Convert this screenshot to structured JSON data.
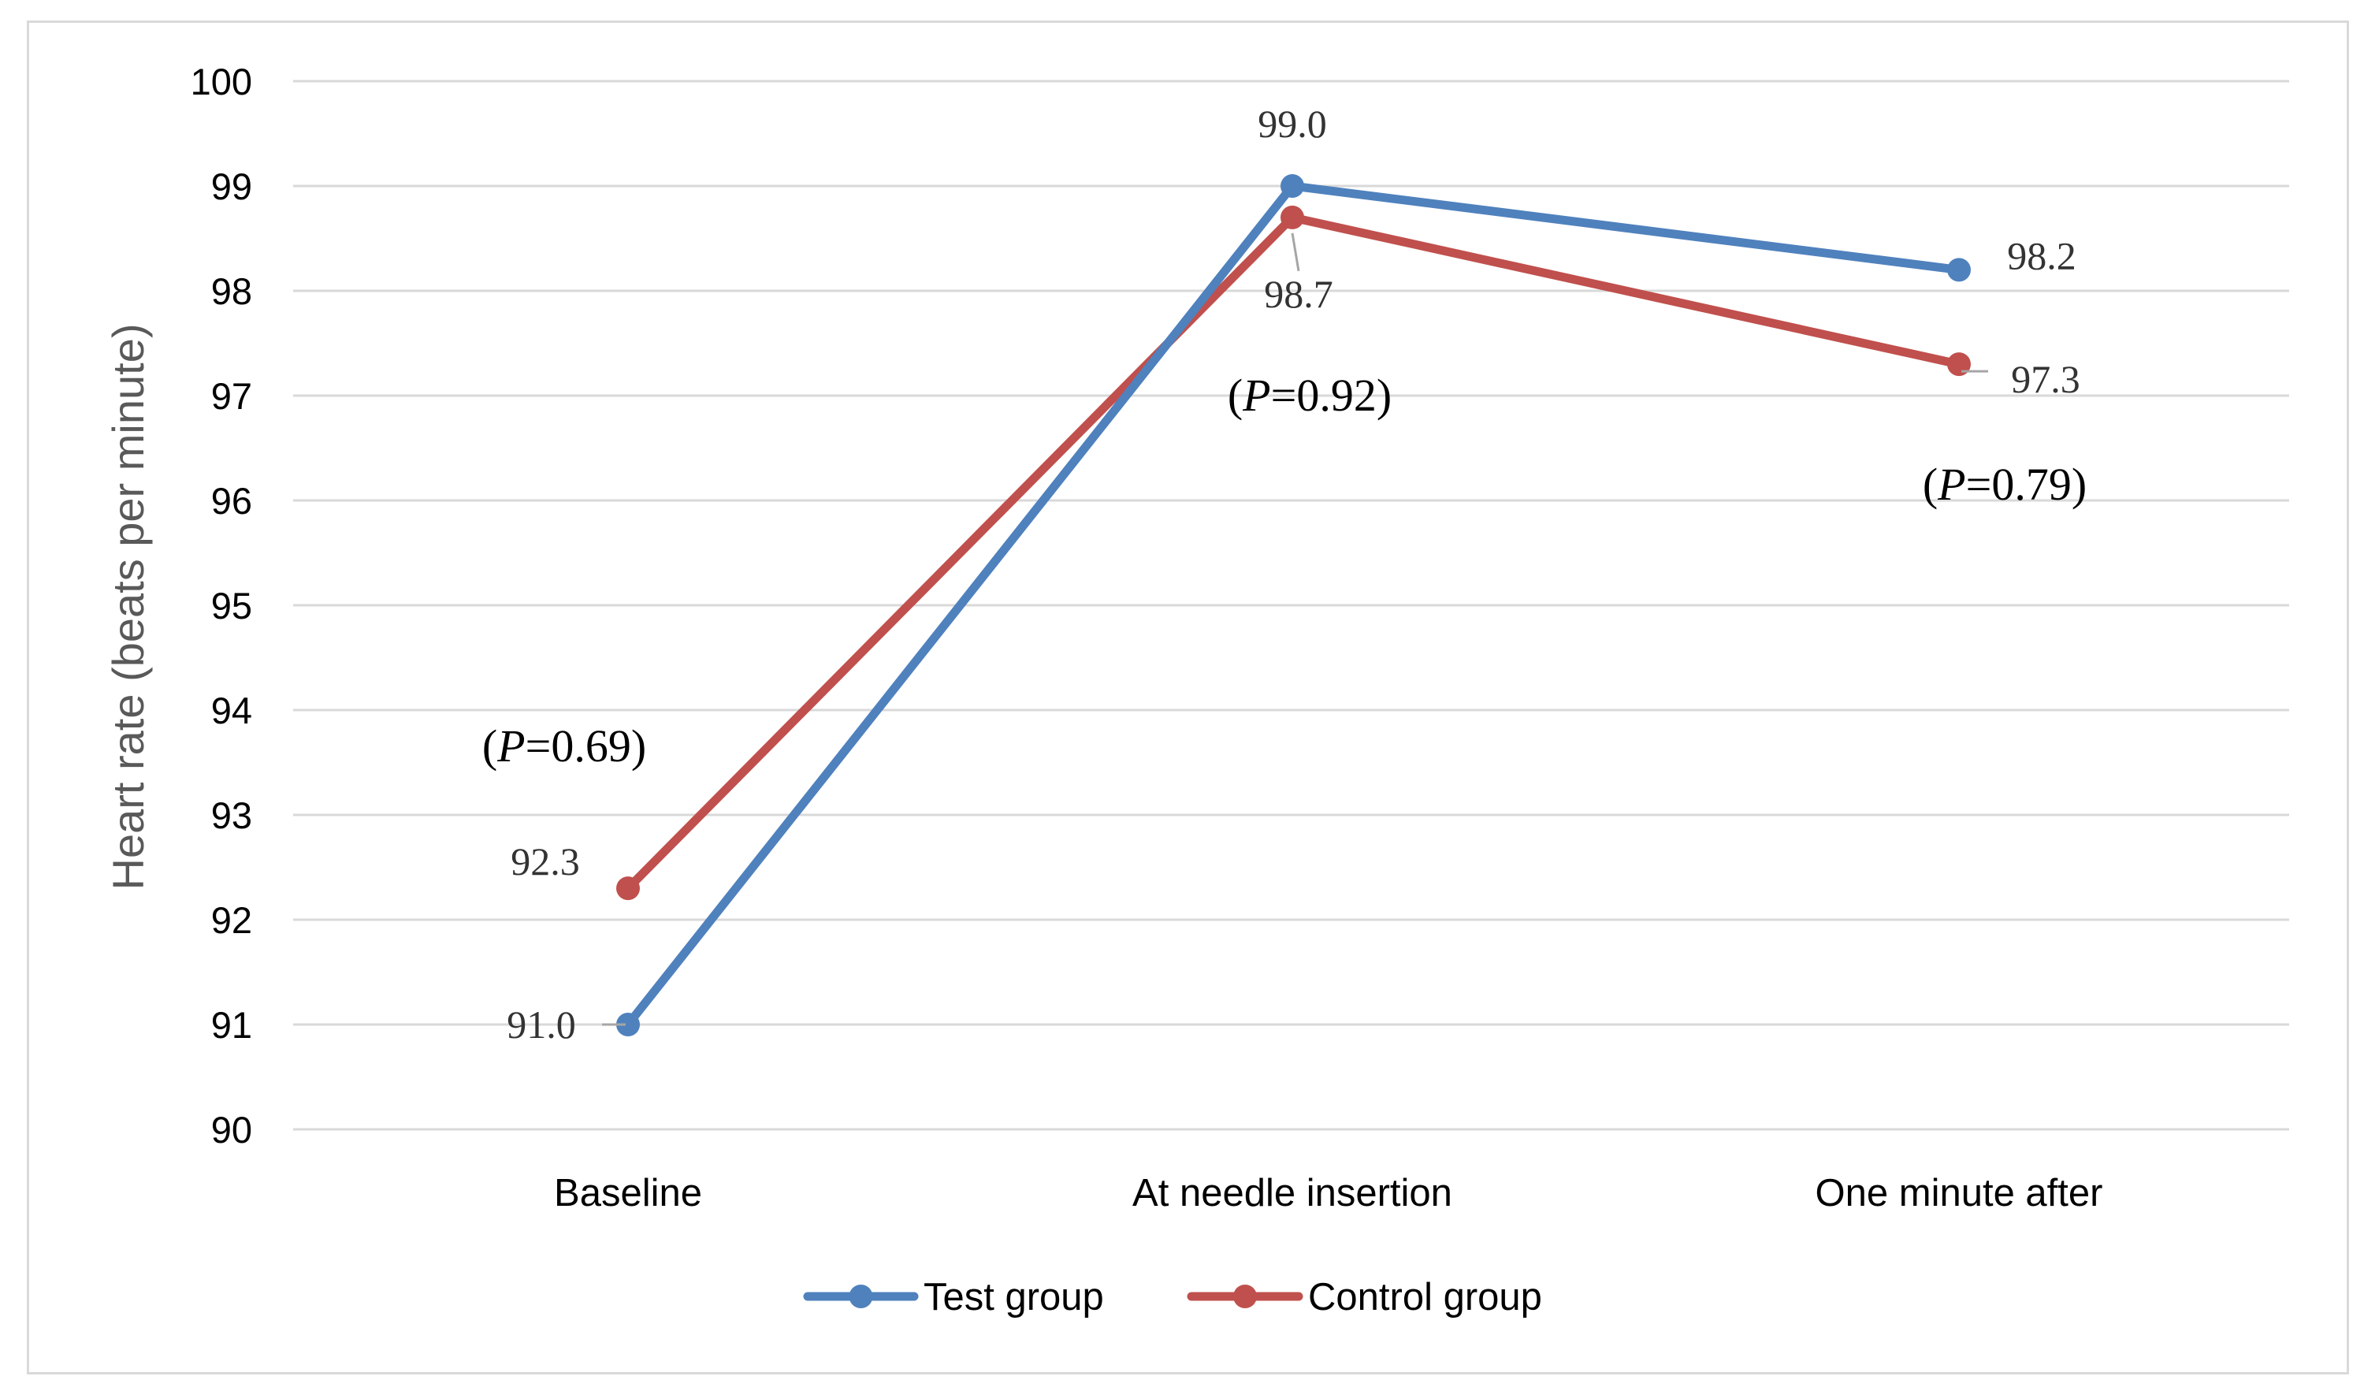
{
  "chart_data": {
    "type": "line",
    "categories": [
      "Baseline",
      "At needle insertion",
      "One minute after"
    ],
    "series": [
      {
        "name": "Test group",
        "color": "#4f81bd",
        "values": [
          91.0,
          99.0,
          98.2
        ],
        "labels": [
          "91.0",
          "99.0",
          "98.2"
        ]
      },
      {
        "name": "Control group",
        "color": "#c0504d",
        "values": [
          92.3,
          98.7,
          97.3
        ],
        "labels": [
          "92.3",
          "98.7",
          "97.3"
        ]
      }
    ],
    "ylabel": "Heart rate (beats per minute)",
    "xlabel": "",
    "ylim": [
      90,
      100
    ],
    "yticks": [
      "90",
      "91",
      "92",
      "93",
      "94",
      "95",
      "96",
      "97",
      "98",
      "99",
      "100"
    ],
    "annotations": [
      {
        "category": "Baseline",
        "text": "P",
        "value": "=0.69"
      },
      {
        "category": "At needle insertion",
        "text": "P",
        "value": "=0.92"
      },
      {
        "category": "One minute after",
        "text": "P",
        "value": "=0.79"
      }
    ],
    "grid": true,
    "legend": "bottom",
    "gridline_color": "#d9d9d9"
  }
}
